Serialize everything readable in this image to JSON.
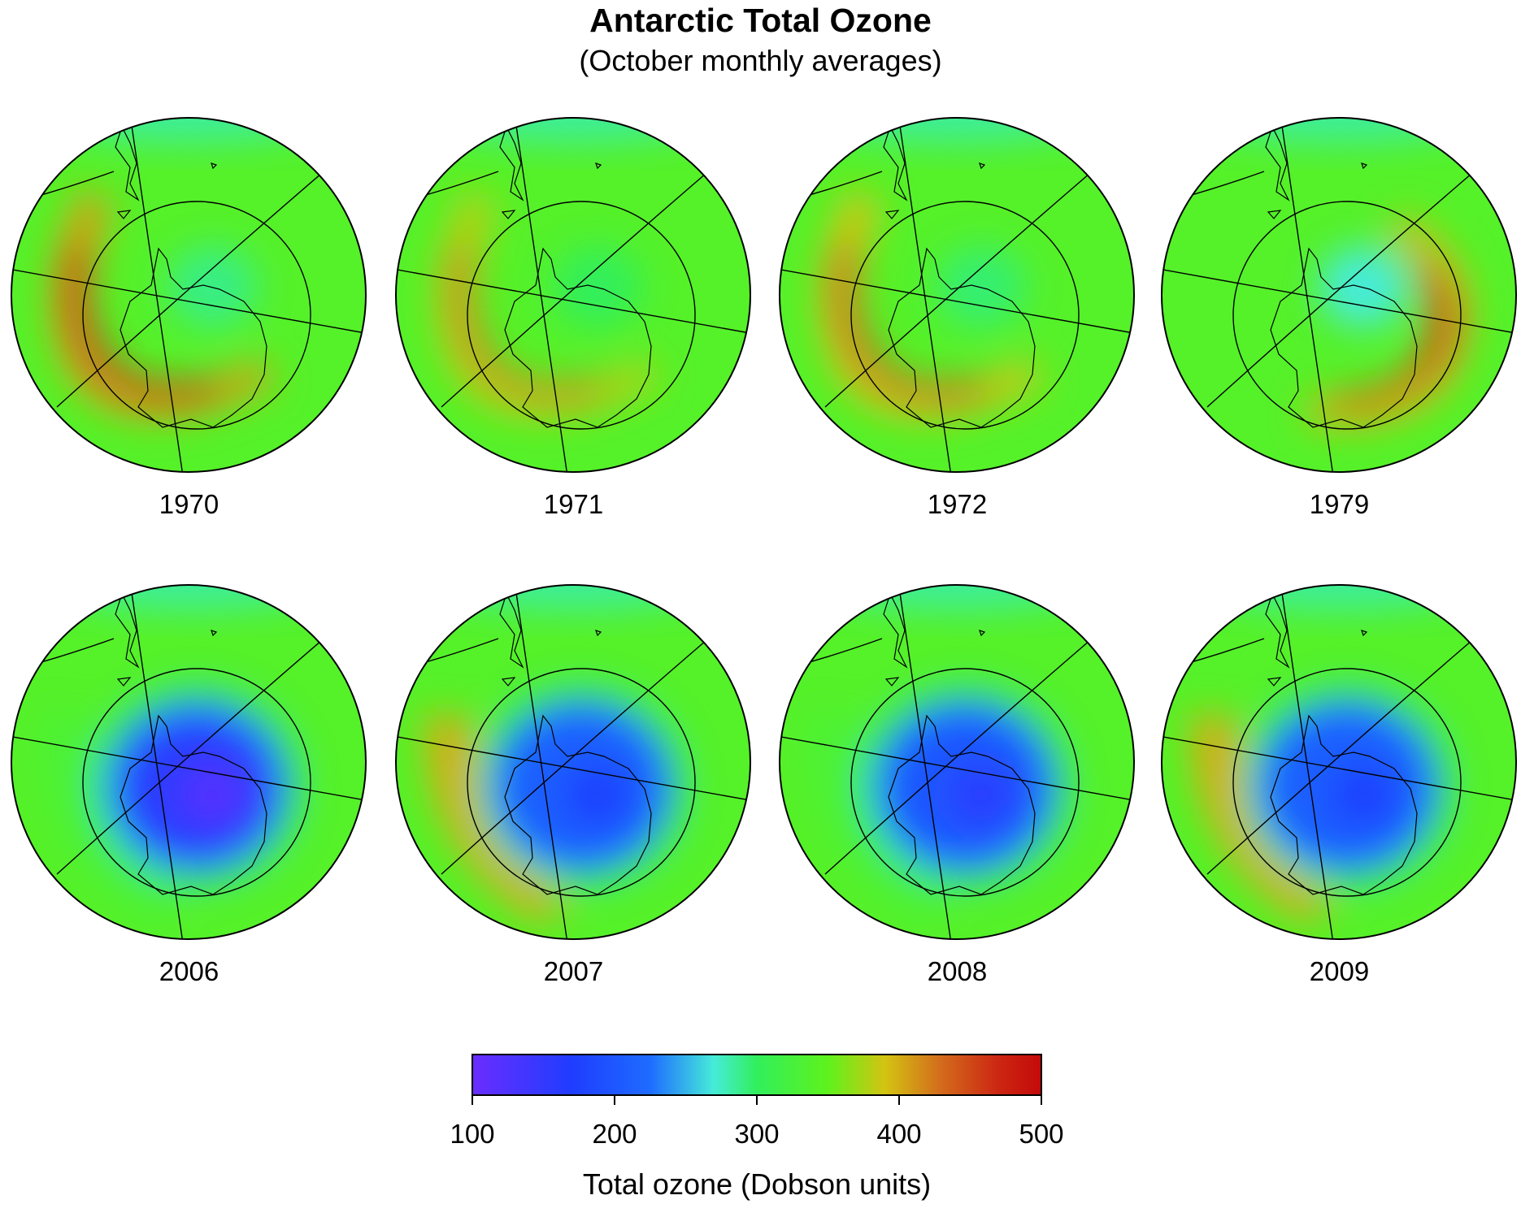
{
  "title": "Antarctic Total Ozone",
  "subtitle": "(October monthly averages)",
  "maps": [
    {
      "year": "1970",
      "pattern": "no-hole",
      "min_ozone": 290,
      "max_ozone": 470
    },
    {
      "year": "1971",
      "pattern": "no-hole",
      "min_ozone": 300,
      "max_ozone": 420
    },
    {
      "year": "1972",
      "pattern": "no-hole",
      "min_ozone": 295,
      "max_ozone": 440
    },
    {
      "year": "1979",
      "pattern": "no-hole",
      "min_ozone": 270,
      "max_ozone": 450
    },
    {
      "year": "2006",
      "pattern": "ozone-hole",
      "min_ozone": 120,
      "max_ozone": 340
    },
    {
      "year": "2007",
      "pattern": "ozone-hole",
      "min_ozone": 170,
      "max_ozone": 420
    },
    {
      "year": "2008",
      "pattern": "ozone-hole",
      "min_ozone": 160,
      "max_ozone": 360
    },
    {
      "year": "2009",
      "pattern": "ozone-hole",
      "min_ozone": 170,
      "max_ozone": 420
    }
  ],
  "colorbar": {
    "title": "Total ozone (Dobson units)",
    "min": 100,
    "max": 500,
    "ticks": [
      "100",
      "200",
      "300",
      "400",
      "500"
    ],
    "stops": [
      {
        "value": 100,
        "color": "#6a2dff"
      },
      {
        "value": 170,
        "color": "#1f3dff"
      },
      {
        "value": 225,
        "color": "#1e6cff"
      },
      {
        "value": 270,
        "color": "#46ecd8"
      },
      {
        "value": 300,
        "color": "#31ef5c"
      },
      {
        "value": 350,
        "color": "#5ef21c"
      },
      {
        "value": 390,
        "color": "#d3c412"
      },
      {
        "value": 430,
        "color": "#d36a1c"
      },
      {
        "value": 470,
        "color": "#cc2612"
      },
      {
        "value": 500,
        "color": "#c40a0a"
      }
    ]
  }
}
